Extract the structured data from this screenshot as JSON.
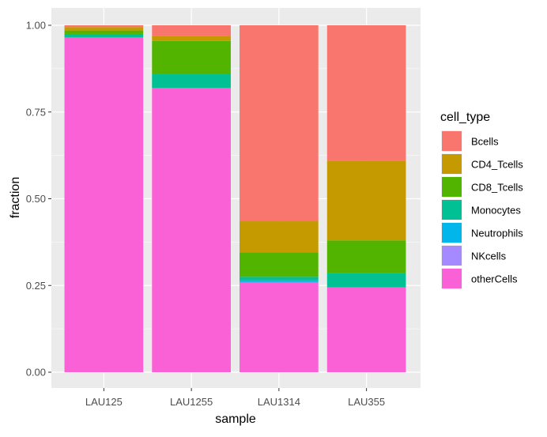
{
  "chart_data": {
    "type": "bar",
    "stacked": true,
    "title": "",
    "xlabel": "sample",
    "ylabel": "fraction",
    "ylim": [
      0,
      1
    ],
    "yticks": [
      "0.00",
      "0.25",
      "0.50",
      "0.75",
      "1.00"
    ],
    "categories": [
      "LAU125",
      "LAU1255",
      "LAU1314",
      "LAU355"
    ],
    "grid": true,
    "legend": {
      "title": "cell_type",
      "position": "right"
    },
    "series": [
      {
        "name": "Bcells",
        "color": "#F8766D",
        "values": [
          0.005,
          0.03,
          0.565,
          0.39
        ]
      },
      {
        "name": "CD4_Tcells",
        "color": "#C49A00",
        "values": [
          0.01,
          0.015,
          0.09,
          0.23
        ]
      },
      {
        "name": "CD8_Tcells",
        "color": "#53B400",
        "values": [
          0.01,
          0.095,
          0.07,
          0.095
        ]
      },
      {
        "name": "Monocytes",
        "color": "#00C094",
        "values": [
          0.01,
          0.04,
          0.01,
          0.04
        ]
      },
      {
        "name": "Neutrophils",
        "color": "#00B6EB",
        "values": [
          0.0,
          0.0,
          0.005,
          0.0
        ]
      },
      {
        "name": "NKcells",
        "color": "#A58AFF",
        "values": [
          0.0,
          0.0,
          0.0,
          0.0
        ]
      },
      {
        "name": "otherCells",
        "color": "#FB61D7",
        "values": [
          0.965,
          0.82,
          0.26,
          0.245
        ]
      }
    ]
  }
}
